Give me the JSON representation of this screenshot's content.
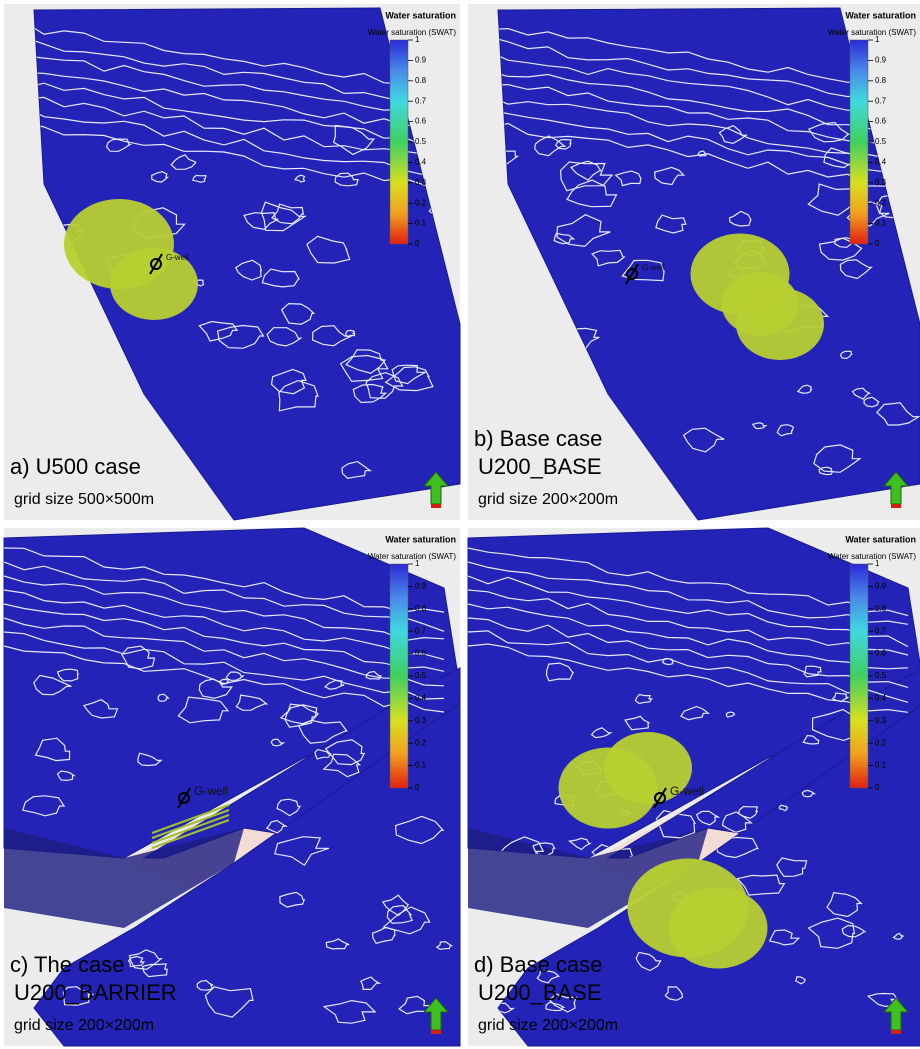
{
  "panels": [
    {
      "label": [
        "a) U500 case",
        "grid size 500×500m"
      ],
      "well": "G-well",
      "legend": {
        "title": "Water saturation",
        "subtitle": "Water saturation (SWAT)",
        "ticks": [
          1,
          0.9,
          0.8,
          0.7,
          0.6,
          0.5,
          0.4,
          0.3,
          0.2,
          0.1,
          0
        ]
      }
    },
    {
      "label": [
        "b) Base case",
        "U200_BASE",
        "grid size 200×200m"
      ],
      "well": "G-well",
      "legend": {
        "title": "Water saturation",
        "subtitle": "Water saturation (SWAT)",
        "ticks": [
          1,
          0.9,
          0.8,
          0.7,
          0.6,
          0.5,
          0.4,
          0.3,
          0.2,
          0.1,
          0
        ]
      }
    },
    {
      "label": [
        "c) The case",
        "U200_BARRIER",
        "grid size 200×200m"
      ],
      "well": "G-well",
      "legend": {
        "title": "Water saturation",
        "subtitle": "Water saturation (SWAT)",
        "ticks": [
          1,
          0.9,
          0.8,
          0.7,
          0.6,
          0.5,
          0.4,
          0.3,
          0.2,
          0.1,
          0
        ]
      }
    },
    {
      "label": [
        "d) Base case",
        "U200_BASE",
        "grid size 200×200m"
      ],
      "well": "G-well",
      "legend": {
        "title": "Water saturation",
        "subtitle": "Water saturation (SWAT)",
        "ticks": [
          1,
          0.9,
          0.8,
          0.7,
          0.6,
          0.5,
          0.4,
          0.3,
          0.2,
          0.1,
          0
        ]
      }
    }
  ]
}
